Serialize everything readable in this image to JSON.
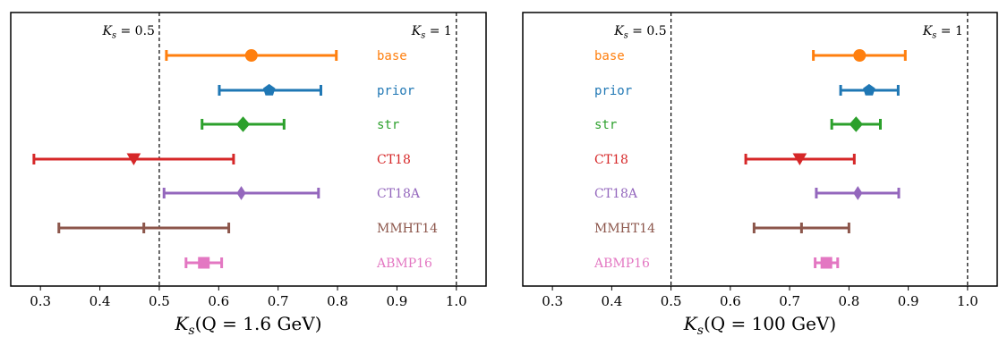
{
  "chart_data": [
    {
      "type": "errorbar",
      "xlabel": "K_s(Q = 1.6 GeV)",
      "xlim": [
        0.25,
        1.05
      ],
      "xticks": [
        "0.3",
        "0.4",
        "0.5",
        "0.6",
        "0.7",
        "0.8",
        "0.9",
        "1.0"
      ],
      "ref_lines": [
        {
          "x": 0.5,
          "label": "K_s = 0.5"
        },
        {
          "x": 1.0,
          "label": "K_s = 1"
        }
      ],
      "series": [
        {
          "name": "base",
          "center": 0.655,
          "low": 0.512,
          "high": 0.798,
          "marker": "circle",
          "color": "#ff7f0e"
        },
        {
          "name": "prior",
          "center": 0.685,
          "low": 0.601,
          "high": 0.772,
          "marker": "pentagon",
          "color": "#1f77b4"
        },
        {
          "name": "str",
          "center": 0.641,
          "low": 0.572,
          "high": 0.71,
          "marker": "diamond",
          "color": "#2ca02c"
        },
        {
          "name": "CT18",
          "center": 0.457,
          "low": 0.289,
          "high": 0.625,
          "marker": "triangle-down",
          "color": "#d62728"
        },
        {
          "name": "CT18A",
          "center": 0.638,
          "low": 0.508,
          "high": 0.768,
          "marker": "thin-diamond",
          "color": "#9467bd"
        },
        {
          "name": "MMHT14",
          "center": 0.474,
          "low": 0.331,
          "high": 0.617,
          "marker": "pipe",
          "color": "#8c564b"
        },
        {
          "name": "ABMP16",
          "center": 0.575,
          "low": 0.545,
          "high": 0.605,
          "marker": "square",
          "color": "#e377c2"
        }
      ]
    },
    {
      "type": "errorbar",
      "xlabel": "K_s(Q = 100 GeV)",
      "xlim": [
        0.25,
        1.05
      ],
      "xticks": [
        "0.3",
        "0.4",
        "0.5",
        "0.6",
        "0.7",
        "0.8",
        "0.9",
        "1.0"
      ],
      "ref_lines": [
        {
          "x": 0.5,
          "label": "K_s = 0.5"
        },
        {
          "x": 1.0,
          "label": "K_s = 1"
        }
      ],
      "series": [
        {
          "name": "base",
          "center": 0.818,
          "low": 0.74,
          "high": 0.895,
          "marker": "circle",
          "color": "#ff7f0e"
        },
        {
          "name": "prior",
          "center": 0.834,
          "low": 0.786,
          "high": 0.883,
          "marker": "pentagon",
          "color": "#1f77b4"
        },
        {
          "name": "str",
          "center": 0.812,
          "low": 0.771,
          "high": 0.853,
          "marker": "diamond",
          "color": "#2ca02c"
        },
        {
          "name": "CT18",
          "center": 0.717,
          "low": 0.626,
          "high": 0.809,
          "marker": "triangle-down",
          "color": "#d62728"
        },
        {
          "name": "CT18A",
          "center": 0.815,
          "low": 0.745,
          "high": 0.884,
          "marker": "thin-diamond",
          "color": "#9467bd"
        },
        {
          "name": "MMHT14",
          "center": 0.72,
          "low": 0.64,
          "high": 0.8,
          "marker": "pipe",
          "color": "#8c564b"
        },
        {
          "name": "ABMP16",
          "center": 0.762,
          "low": 0.743,
          "high": 0.781,
          "marker": "square",
          "color": "#e377c2"
        }
      ]
    }
  ]
}
